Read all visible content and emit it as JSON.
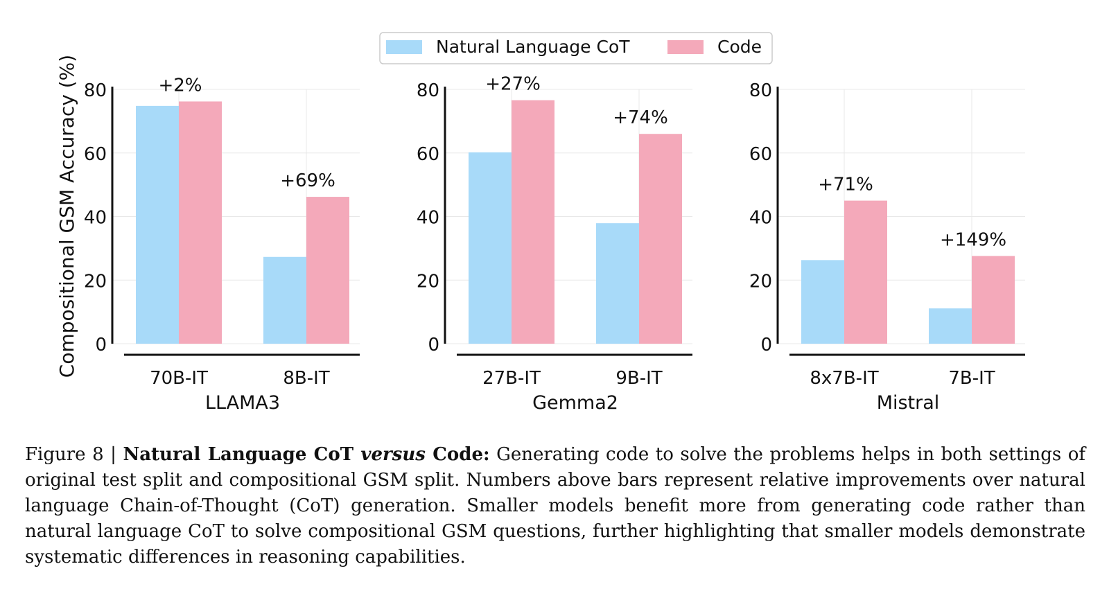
{
  "colors": {
    "nl": "#a8daf9",
    "code": "#f4a9ba",
    "grid": "#e8e8e8"
  },
  "legend": {
    "nl_label": "Natural Language CoT",
    "code_label": "Code"
  },
  "chart_data": {
    "type": "bar",
    "ylabel": "Compositional GSM Accuracy (%)",
    "ylim": [
      0,
      80
    ],
    "yticks": [
      0,
      20,
      40,
      60,
      80
    ],
    "grid": true,
    "legend_placement": "top-center",
    "series_names": [
      "Natural Language CoT",
      "Code"
    ],
    "panels": [
      {
        "group": "LLAMA3",
        "categories": [
          "70B-IT",
          "8B-IT"
        ],
        "series": [
          {
            "name": "Natural Language CoT",
            "values": [
              74.8,
              27.3
            ]
          },
          {
            "name": "Code",
            "values": [
              76.2,
              46.2
            ]
          }
        ],
        "annotations": [
          "+2%",
          "+69%"
        ]
      },
      {
        "group": "Gemma2",
        "categories": [
          "27B-IT",
          "9B-IT"
        ],
        "series": [
          {
            "name": "Natural Language CoT",
            "values": [
              60.2,
              37.9
            ]
          },
          {
            "name": "Code",
            "values": [
              76.6,
              66.0
            ]
          }
        ],
        "annotations": [
          "+27%",
          "+74%"
        ]
      },
      {
        "group": "Mistral",
        "categories": [
          "8x7B-IT",
          "7B-IT"
        ],
        "series": [
          {
            "name": "Natural Language CoT",
            "values": [
              26.3,
              11.1
            ]
          },
          {
            "name": "Code",
            "values": [
              45.0,
              27.6
            ]
          }
        ],
        "annotations": [
          "+71%",
          "+149%"
        ]
      }
    ]
  },
  "caption": {
    "label": "Figure 8 | ",
    "bold_1": "Natural Language CoT ",
    "italic": "versus",
    "bold_2": " Code:",
    "text": " Generating code to solve the problems helps in both settings of original test split and compositional GSM split. Numbers above bars represent relative improvements over natural language Chain-of-Thought (CoT) generation. Smaller models benefit more from generating code rather than natural language CoT to solve compositional GSM questions, further highlighting that smaller models demonstrate systematic differences in reasoning capabilities."
  }
}
